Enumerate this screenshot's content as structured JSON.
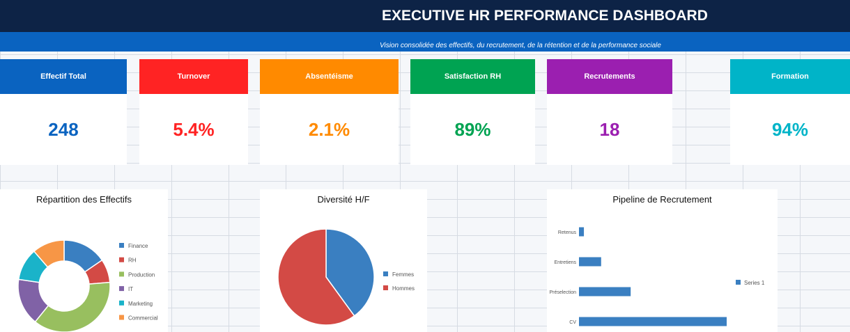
{
  "header": {
    "title": "EXECUTIVE HR PERFORMANCE DASHBOARD",
    "subtitle": "Vision consolidée des effectifs, du recrutement, de la rétention et de la performance sociale"
  },
  "kpis": [
    {
      "label": "Effectif Total",
      "value": "248",
      "color": "#0a63c0"
    },
    {
      "label": "Turnover",
      "value": "5.4%",
      "color": "#ff2323"
    },
    {
      "label": "Absentéisme",
      "value": "2.1%",
      "color": "#ff8a00"
    },
    {
      "label": "Satisfaction RH",
      "value": "89%",
      "color": "#00a352"
    },
    {
      "label": "Recrutements",
      "value": "18",
      "color": "#9b1fb0"
    },
    {
      "label": "Formation",
      "value": "94%",
      "color": "#00b4c8"
    }
  ],
  "chart_data": [
    {
      "type": "pie",
      "variant": "donut",
      "title": "Répartition des Effectifs",
      "categories": [
        "Finance",
        "RH",
        "Production",
        "IT",
        "Marketing",
        "Commercial"
      ],
      "values": [
        15,
        8,
        36,
        16,
        11,
        11
      ],
      "colors": [
        "#3a7fc1",
        "#d34a45",
        "#98bf5f",
        "#8062a6",
        "#1ab3c9",
        "#f79646"
      ],
      "legend": "right"
    },
    {
      "type": "pie",
      "title": "Diversité H/F",
      "categories": [
        "Femmes",
        "Hommes"
      ],
      "values": [
        40,
        60
      ],
      "colors": [
        "#3a7fc1",
        "#d34a45"
      ],
      "legend": "right"
    },
    {
      "type": "bar",
      "orientation": "horizontal",
      "title": "Pipeline de Recrutement",
      "categories": [
        "CV",
        "Préselection",
        "Entretiens",
        "Retenus"
      ],
      "series": [
        {
          "name": "Series 1",
          "values": [
            120,
            42,
            18,
            4
          ]
        }
      ],
      "color": "#3a7fc1",
      "legend": "right"
    }
  ]
}
